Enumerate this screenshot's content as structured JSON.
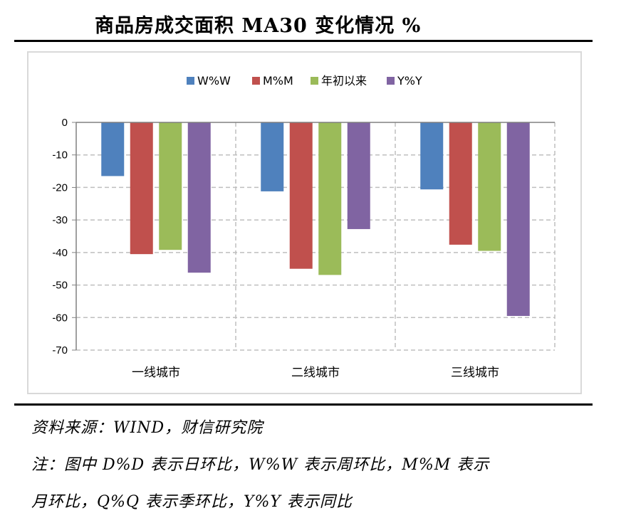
{
  "title": "商品房成交面积 MA30 变化情况  %",
  "source": "资料来源：WIND，财信研究院",
  "note_line1": "注：图中 D%D 表示日环比，W%W 表示周环比，M%M 表示",
  "note_line2": "月环比，Q%Q 表示季环比，Y%Y 表示同比",
  "colors": {
    "W%W": "#4f81bd",
    "M%M": "#c0504d",
    "年初以来": "#9bbb59",
    "Y%Y": "#8064a2"
  },
  "chart_data": {
    "type": "bar",
    "title": "商品房成交面积 MA30 变化情况  %",
    "categories": [
      "一线城市",
      "二线城市",
      "三线城市"
    ],
    "series": [
      {
        "name": "W%W",
        "values": [
          -16.5,
          -21.2,
          -20.6
        ]
      },
      {
        "name": "M%M",
        "values": [
          -40.5,
          -45.0,
          -37.6
        ]
      },
      {
        "name": "年初以来",
        "values": [
          -39.2,
          -46.9,
          -39.5
        ]
      },
      {
        "name": "Y%Y",
        "values": [
          -46.2,
          -32.8,
          -59.5
        ]
      }
    ],
    "ylim": [
      -70,
      0
    ],
    "yticks": [
      0,
      -10,
      -20,
      -30,
      -40,
      -50,
      -60,
      -70
    ],
    "grid": true,
    "legend": "top"
  }
}
